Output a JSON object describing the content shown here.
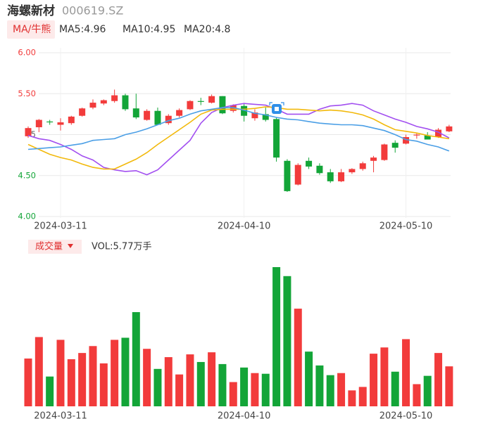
{
  "chart_data": [
    {
      "type": "candlestick",
      "title": "海螺新材",
      "subtitle": "000619.SZ",
      "button": "MA/牛熊",
      "categories": [
        null,
        null,
        null,
        "2024-03-11",
        null,
        null,
        null,
        null,
        null,
        null,
        null,
        null,
        null,
        null,
        null,
        null,
        null,
        null,
        null,
        null,
        "2024-04-10",
        null,
        null,
        null,
        null,
        null,
        null,
        null,
        null,
        null,
        null,
        null,
        null,
        null,
        null,
        "2024-05-10",
        null,
        null,
        null,
        null
      ],
      "open": [
        4.98,
        5.09,
        5.16,
        5.12,
        5.14,
        5.23,
        5.33,
        5.38,
        5.41,
        5.48,
        5.32,
        5.18,
        5.29,
        5.14,
        5.23,
        5.31,
        5.41,
        5.39,
        5.47,
        5.29,
        5.35,
        5.2,
        5.25,
        5.19,
        4.68,
        4.39,
        4.68,
        4.62,
        4.54,
        4.43,
        4.54,
        4.58,
        4.68,
        4.69,
        4.9,
        4.89,
        4.99,
        4.99,
        4.97,
        5.04
      ],
      "high": [
        5.1,
        5.19,
        5.18,
        5.2,
        5.23,
        5.33,
        5.43,
        5.43,
        5.55,
        5.5,
        5.5,
        5.31,
        5.33,
        5.25,
        5.32,
        5.42,
        5.45,
        5.49,
        5.47,
        5.37,
        5.38,
        5.31,
        5.33,
        5.21,
        4.7,
        4.65,
        4.72,
        4.65,
        4.58,
        4.58,
        4.59,
        4.67,
        4.74,
        4.89,
        4.93,
        5.0,
        5.02,
        5.03,
        5.08,
        5.12
      ],
      "low": [
        4.96,
        5.03,
        5.12,
        5.05,
        5.12,
        5.22,
        5.31,
        5.36,
        5.39,
        5.29,
        5.19,
        5.17,
        5.12,
        5.12,
        5.21,
        5.3,
        5.36,
        5.38,
        5.25,
        5.27,
        5.16,
        5.17,
        5.16,
        4.67,
        4.3,
        4.38,
        4.58,
        4.51,
        4.41,
        4.42,
        4.52,
        4.56,
        4.54,
        4.68,
        4.78,
        4.88,
        4.95,
        4.94,
        4.96,
        5.03
      ],
      "close": [
        5.08,
        5.18,
        5.15,
        5.15,
        5.22,
        5.32,
        5.39,
        5.42,
        5.48,
        5.31,
        5.21,
        5.29,
        5.12,
        5.23,
        5.3,
        5.41,
        5.4,
        5.47,
        5.26,
        5.36,
        5.23,
        5.27,
        5.18,
        4.72,
        4.31,
        4.63,
        4.61,
        4.53,
        4.43,
        4.54,
        4.58,
        4.65,
        4.72,
        4.88,
        4.84,
        4.97,
        5.0,
        4.94,
        5.06,
        5.1
      ],
      "up_color": "#f23b3b",
      "down_color": "#13a538",
      "series": [
        {
          "name": "MA5",
          "legend_label": "MA5:4.96",
          "color": "#a24ff0",
          "values": [
            4.99,
            4.95,
            4.93,
            4.88,
            4.82,
            4.74,
            4.69,
            4.6,
            4.57,
            4.55,
            4.56,
            4.51,
            4.57,
            4.69,
            4.81,
            4.93,
            5.14,
            5.27,
            5.33,
            5.36,
            5.38,
            5.37,
            5.36,
            5.31,
            5.25,
            5.25,
            5.25,
            5.31,
            5.35,
            5.36,
            5.38,
            5.36,
            5.29,
            5.24,
            5.19,
            5.15,
            5.1,
            5.07,
            5.03,
            4.96
          ]
        },
        {
          "name": "MA10",
          "legend_label": "MA10:4.95",
          "color": "#f2b90c",
          "values": [
            4.88,
            4.82,
            4.76,
            4.72,
            4.69,
            4.64,
            4.6,
            4.58,
            4.58,
            4.64,
            4.7,
            4.78,
            4.88,
            4.97,
            5.06,
            5.15,
            5.25,
            5.3,
            5.31,
            5.31,
            5.31,
            5.32,
            5.34,
            5.33,
            5.31,
            5.31,
            5.3,
            5.29,
            5.3,
            5.29,
            5.27,
            5.24,
            5.19,
            5.12,
            5.06,
            5.04,
            5.02,
            4.99,
            4.97,
            4.95
          ]
        },
        {
          "name": "MA20",
          "legend_label": "MA20:4.8",
          "color": "#4b9fe6",
          "values": [
            4.82,
            4.83,
            4.84,
            4.85,
            4.87,
            4.89,
            4.93,
            4.94,
            4.95,
            5.0,
            5.03,
            5.07,
            5.12,
            5.17,
            5.2,
            5.25,
            5.29,
            5.31,
            5.33,
            5.33,
            5.3,
            5.26,
            5.24,
            5.21,
            5.19,
            5.18,
            5.16,
            5.14,
            5.13,
            5.12,
            5.12,
            5.11,
            5.08,
            5.05,
            5.0,
            4.94,
            4.92,
            4.88,
            4.85,
            4.8
          ]
        }
      ],
      "ylim": [
        4,
        6
      ],
      "yticks": [
        {
          "value": 6,
          "label": "6.00"
        },
        {
          "value": 5.5,
          "label": "5.50"
        },
        5,
        {
          "value": 4.5,
          "label": "4.50"
        },
        {
          "value": 4,
          "label": "4.00"
        }
      ],
      "grid": true
    },
    {
      "type": "bar",
      "title": "成交量",
      "value_label": "VOL:5.77万手",
      "categories": [
        null,
        null,
        null,
        "2024-03-11",
        null,
        null,
        null,
        null,
        null,
        null,
        null,
        null,
        null,
        null,
        null,
        null,
        null,
        null,
        null,
        null,
        "2024-04-10",
        null,
        null,
        null,
        null,
        null,
        null,
        null,
        null,
        null,
        null,
        null,
        null,
        null,
        null,
        "2024-05-10",
        null,
        null,
        null,
        null
      ],
      "values": [
        6.9,
        10.0,
        4.3,
        9.6,
        6.8,
        7.7,
        8.7,
        6.2,
        9.6,
        9.9,
        13.6,
        8.3,
        5.4,
        7.1,
        4.6,
        7.5,
        6.4,
        7.8,
        6.1,
        3.5,
        5.6,
        4.8,
        4.7,
        20.1,
        18.8,
        14.1,
        7.9,
        5.9,
        4.5,
        4.8,
        2.3,
        2.8,
        7.6,
        8.5,
        5.0,
        9.7,
        3.2,
        4.4,
        7.7,
        5.77
      ],
      "ylim": [
        0,
        20.3
      ]
    }
  ]
}
